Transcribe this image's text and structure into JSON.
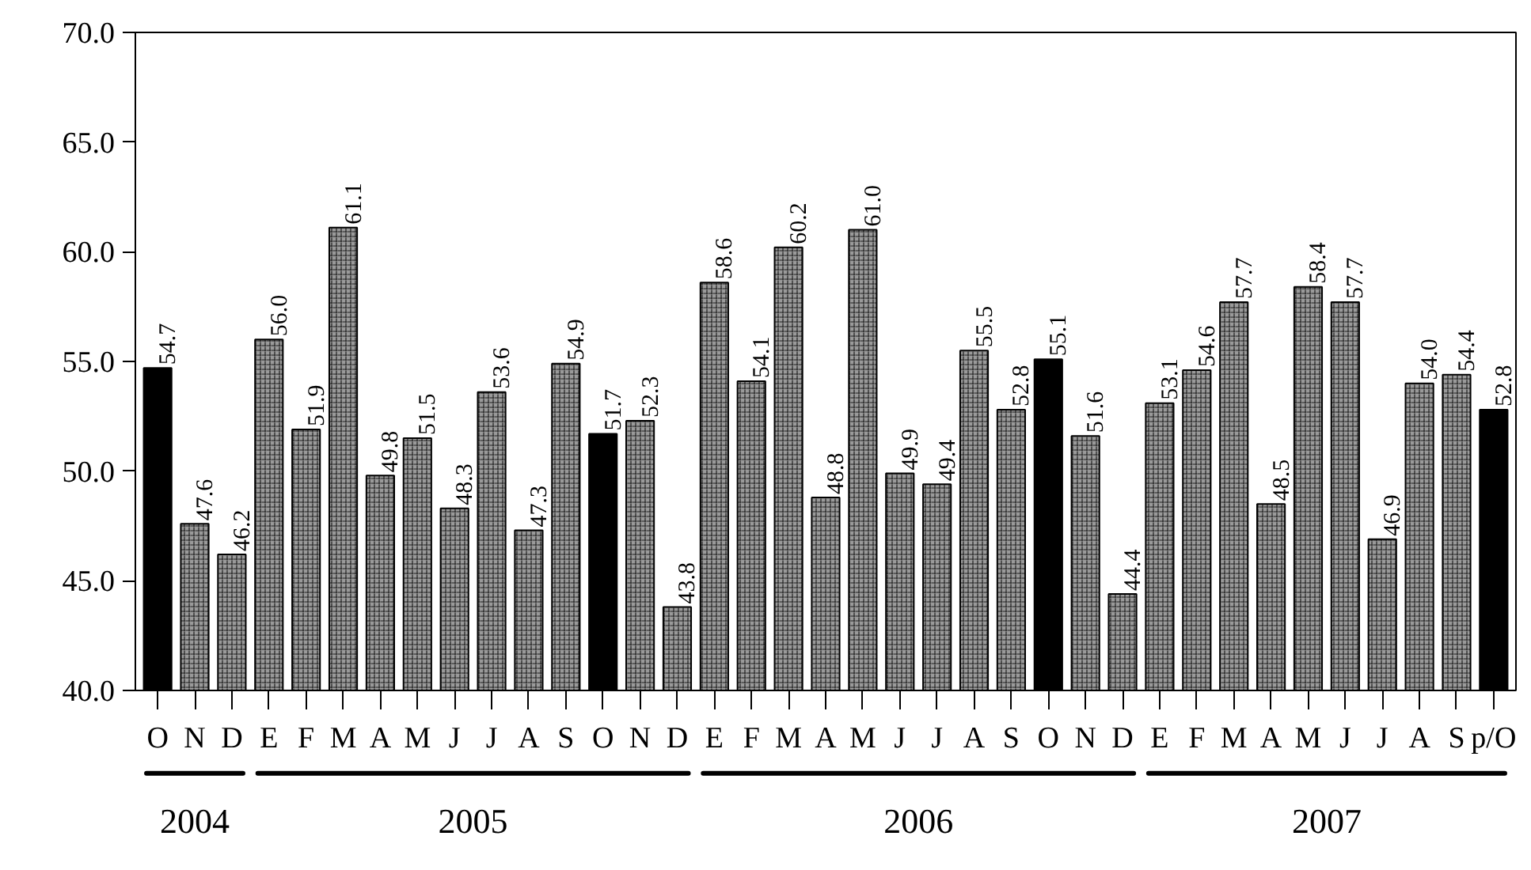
{
  "chart_data": {
    "type": "bar",
    "categories": [
      "O",
      "N",
      "D",
      "E",
      "F",
      "M",
      "A",
      "M",
      "J",
      "J",
      "A",
      "S",
      "O",
      "N",
      "D",
      "E",
      "F",
      "M",
      "A",
      "M",
      "J",
      "J",
      "A",
      "S",
      "O",
      "N",
      "D",
      "E",
      "F",
      "M",
      "A",
      "M",
      "J",
      "J",
      "A",
      "S",
      "p/O"
    ],
    "values": [
      54.7,
      47.6,
      46.2,
      56.0,
      51.9,
      61.1,
      49.8,
      51.5,
      48.3,
      53.6,
      47.3,
      54.9,
      51.7,
      52.3,
      43.8,
      58.6,
      54.1,
      60.2,
      48.8,
      61.0,
      49.9,
      49.4,
      55.5,
      52.8,
      55.1,
      51.6,
      44.4,
      53.1,
      54.6,
      57.7,
      48.5,
      58.4,
      57.7,
      46.9,
      54.0,
      54.4,
      52.8
    ],
    "value_labels": [
      "54.7",
      "47.6",
      "46.2",
      "56.0",
      "51.9",
      "61.1",
      "49.8",
      "51.5",
      "48.3",
      "53.6",
      "47.3",
      "54.9",
      "51.7",
      "52.3",
      "43.8",
      "58.6",
      "54.1",
      "60.2",
      "48.8",
      "61.0",
      "49.9",
      "49.4",
      "55.5",
      "52.8",
      "55.1",
      "51.6",
      "44.4",
      "53.1",
      "54.6",
      "57.7",
      "48.5",
      "58.4",
      "57.7",
      "46.9",
      "54.0",
      "54.4",
      "52.8"
    ],
    "colors": [
      "#000000",
      "#9a9a9a",
      "#9a9a9a",
      "#9a9a9a",
      "#9a9a9a",
      "#9a9a9a",
      "#9a9a9a",
      "#9a9a9a",
      "#9a9a9a",
      "#9a9a9a",
      "#9a9a9a",
      "#9a9a9a",
      "#000000",
      "#9a9a9a",
      "#9a9a9a",
      "#9a9a9a",
      "#9a9a9a",
      "#9a9a9a",
      "#9a9a9a",
      "#9a9a9a",
      "#9a9a9a",
      "#9a9a9a",
      "#9a9a9a",
      "#9a9a9a",
      "#000000",
      "#9a9a9a",
      "#9a9a9a",
      "#9a9a9a",
      "#9a9a9a",
      "#9a9a9a",
      "#9a9a9a",
      "#9a9a9a",
      "#9a9a9a",
      "#9a9a9a",
      "#9a9a9a",
      "#9a9a9a",
      "#000000"
    ],
    "ylim": [
      40,
      70
    ],
    "yticks": [
      {
        "value": 40,
        "label": "40.0"
      },
      {
        "value": 45,
        "label": "45.0"
      },
      {
        "value": 50,
        "label": "50.0"
      },
      {
        "value": 55,
        "label": "55.0"
      },
      {
        "value": 60,
        "label": "60.0"
      },
      {
        "value": 65,
        "label": "65.0"
      },
      {
        "value": 70,
        "label": "70.0"
      }
    ],
    "annotations": [
      "2004",
      "2005",
      "2006",
      "2007"
    ],
    "grid": false
  }
}
